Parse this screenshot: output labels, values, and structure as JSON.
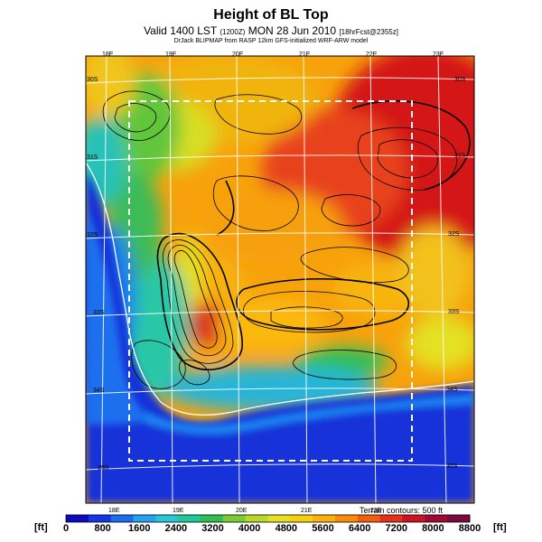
{
  "header": {
    "title": "Height of BL Top",
    "valid_main": "Valid 1400 LST",
    "valid_code": "(1200Z)",
    "valid_date": "MON 28 Jun 2010",
    "valid_tail": "[18hrFcst@2355z]",
    "subtitle": "DrJack BLIPMAP from RASP 12km GFS-initialized WRF-ARW model"
  },
  "axes": {
    "lon_top": [
      "18E",
      "19E",
      "20E",
      "21E",
      "22E",
      "23E"
    ],
    "lon_bottom": [
      "18E",
      "19E",
      "20E",
      "21E",
      "22E"
    ],
    "lat_left": [
      "30S",
      "31S",
      "32S",
      "33S",
      "34S",
      "35S"
    ],
    "lat_right": [
      "30S",
      "31S",
      "32S",
      "33S",
      "34S",
      "35S"
    ]
  },
  "colorbar": {
    "unit_left": "[ft]",
    "unit_right": "[ft]",
    "ticks": [
      "0",
      "800",
      "1600",
      "2400",
      "3200",
      "4000",
      "4800",
      "5600",
      "6400",
      "7200",
      "8000",
      "8800"
    ],
    "colors": [
      "#0d0bbd",
      "#1535e6",
      "#1c6cf0",
      "#25a3f2",
      "#27c6d8",
      "#22c79a",
      "#2ebe52",
      "#79cc33",
      "#b8d92a",
      "#e5e020",
      "#f7d00d",
      "#fbb10b",
      "#f98b0a",
      "#f2600d",
      "#e6301a",
      "#c91423",
      "#a00a30",
      "#7a0a40"
    ]
  },
  "terrain_note": "Terrain contours: 500 ft"
}
